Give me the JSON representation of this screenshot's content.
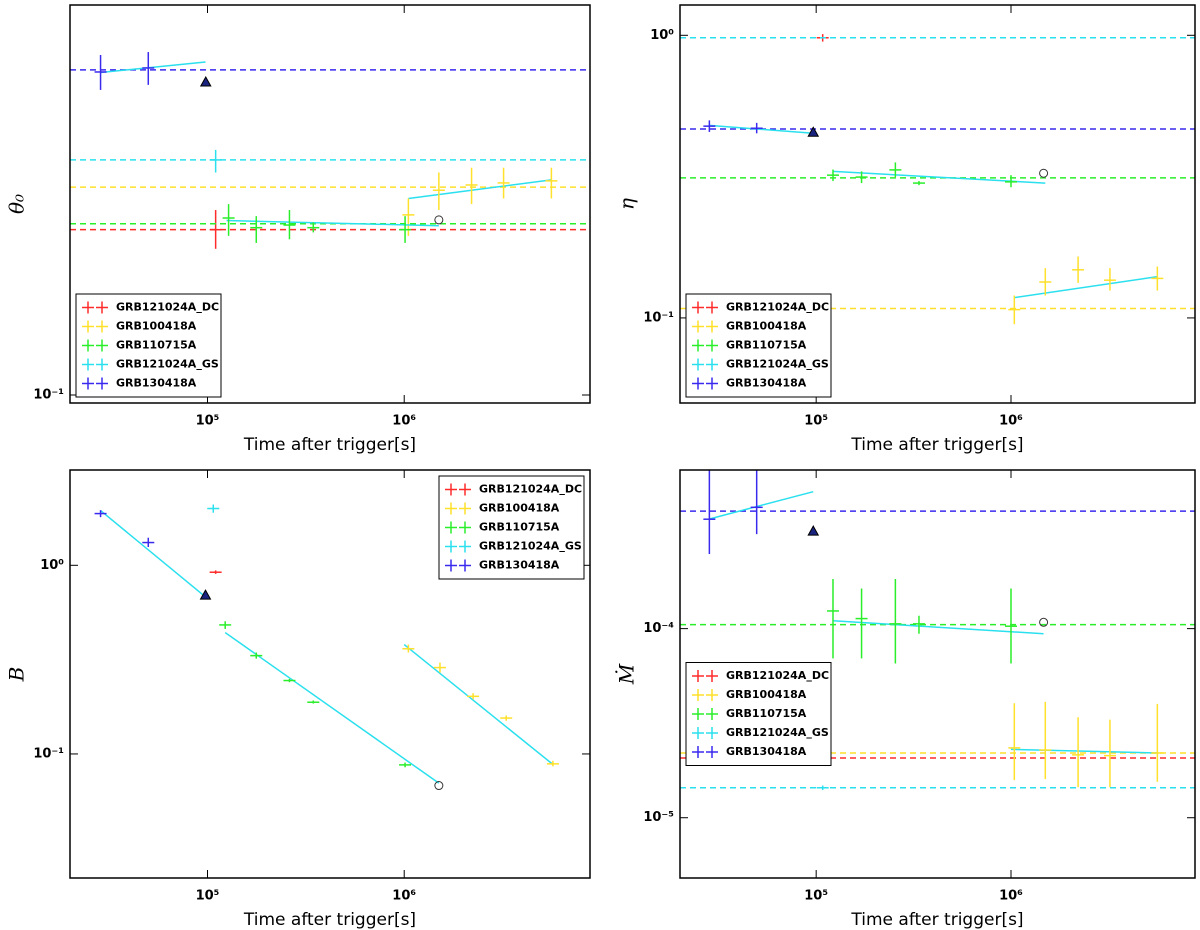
{
  "chart_data": [
    {
      "type": "scatter",
      "xlabel": "Time after trigger[s]",
      "ylabel": "θ₀",
      "log_x": true,
      "log_y": true,
      "xlim": [
        20000,
        8800000
      ],
      "ylim": [
        0.0955,
        0.944
      ],
      "xticks": [
        {
          "value": 100000,
          "label": "10⁵"
        },
        {
          "value": 1000000,
          "label": "10⁶"
        }
      ],
      "yticks": [
        {
          "value": 0.1,
          "label": "10⁻¹"
        }
      ],
      "legend": "lower left",
      "fit_color": "#2ae0ee",
      "triangle": [
        98000,
        0.606
      ],
      "circle": [
        1500000,
        0.274
      ],
      "series": [
        {
          "name": "GRB121024A_DC",
          "color": "#ff2a2a",
          "x": [
            110000
          ],
          "values": [
            0.259
          ],
          "ylow": [
            0.232
          ],
          "yhigh": [
            0.29
          ],
          "level": 0.259
        },
        {
          "name": "GRB100418A",
          "color": "#ffe02a",
          "x": [
            1050000,
            1500000,
            2200000,
            3200000,
            5600000
          ],
          "values": [
            0.282,
            0.325,
            0.335,
            0.339,
            0.343
          ],
          "ylow": [
            0.25,
            0.29,
            0.3,
            0.31,
            0.31
          ],
          "yhigh": [
            0.31,
            0.36,
            0.37,
            0.37,
            0.37
          ],
          "level": 0.331,
          "fit_x": [
            1050000,
            5600000
          ],
          "fit_y": [
            0.31,
            0.345
          ]
        },
        {
          "name": "GRB110715A",
          "color": "#2aee2a",
          "x": [
            128000,
            177000,
            261000,
            345000,
            1010000
          ],
          "values": [
            0.277,
            0.262,
            0.266,
            0.262,
            0.259
          ],
          "ylow": [
            0.25,
            0.24,
            0.245,
            0.255,
            0.24
          ],
          "yhigh": [
            0.3,
            0.28,
            0.29,
            0.27,
            0.28
          ],
          "level": 0.268,
          "fit_x": [
            125000,
            1500000
          ],
          "fit_y": [
            0.273,
            0.265
          ]
        },
        {
          "name": "GRB121024A_GS",
          "color": "#2ae0ee",
          "x": [
            110000
          ],
          "values": [
            0.387
          ],
          "ylow": [
            0.36
          ],
          "yhigh": [
            0.41
          ],
          "level": 0.387
        },
        {
          "name": "GRB130418A",
          "color": "#3a2aee",
          "x": [
            28600,
            50000
          ],
          "values": [
            0.642,
            0.657
          ],
          "ylow": [
            0.579,
            0.596
          ],
          "yhigh": [
            0.708,
            0.72
          ],
          "level": 0.65,
          "fit_x": [
            28600,
            97700
          ],
          "fit_y": [
            0.64,
            0.68
          ]
        }
      ]
    },
    {
      "type": "scatter",
      "xlabel": "Time after trigger[s]",
      "ylabel": "η",
      "log_x": true,
      "log_y": true,
      "xlim": [
        20000,
        8800000
      ],
      "ylim": [
        0.05,
        1.28
      ],
      "xticks": [
        {
          "value": 100000,
          "label": "10⁵"
        },
        {
          "value": 1000000,
          "label": "10⁶"
        }
      ],
      "yticks": [
        {
          "value": 0.1,
          "label": "10⁻¹"
        },
        {
          "value": 1,
          "label": "10⁰"
        }
      ],
      "legend": "lower left",
      "fit_color": "#2ae0ee",
      "triangle": [
        96600,
        0.454
      ],
      "circle": [
        1470000,
        0.325
      ],
      "series": [
        {
          "name": "GRB121024A_DC",
          "color": "#ff2a2a",
          "x": [
            108000
          ],
          "values": [
            0.98
          ],
          "ylow": [
            0.95
          ],
          "yhigh": [
            1.01
          ],
          "level": 0.98
        },
        {
          "name": "GRB100418A",
          "color": "#ffe02a",
          "x": [
            1040000,
            1500000,
            2210000,
            3220000,
            5640000
          ],
          "values": [
            0.107,
            0.134,
            0.148,
            0.136,
            0.138
          ],
          "ylow": [
            0.095,
            0.12,
            0.133,
            0.125,
            0.125
          ],
          "yhigh": [
            0.12,
            0.15,
            0.165,
            0.15,
            0.152
          ],
          "level": 0.108,
          "fit_x": [
            1040000,
            5640000
          ],
          "fit_y": [
            0.118,
            0.14
          ]
        },
        {
          "name": "GRB110715A",
          "color": "#2aee2a",
          "x": [
            122000,
            171000,
            255000,
            337000,
            1000000
          ],
          "values": [
            0.32,
            0.315,
            0.334,
            0.3,
            0.303
          ],
          "ylow": [
            0.305,
            0.3,
            0.315,
            0.295,
            0.29
          ],
          "yhigh": [
            0.335,
            0.33,
            0.355,
            0.305,
            0.32
          ],
          "level": 0.313,
          "fit_x": [
            122000,
            1500000
          ],
          "fit_y": [
            0.33,
            0.3
          ]
        },
        {
          "name": "GRB121024A_GS",
          "color": "#2ae0ee",
          "x": [],
          "values": [],
          "ylow": [],
          "yhigh": [],
          "level": 0.98
        },
        {
          "name": "GRB130418A",
          "color": "#3a2aee",
          "x": [
            28300,
            49500
          ],
          "values": [
            0.477,
            0.469
          ],
          "ylow": [
            0.455,
            0.45
          ],
          "yhigh": [
            0.5,
            0.49
          ],
          "level": 0.466,
          "fit_x": [
            28300,
            96600
          ],
          "fit_y": [
            0.48,
            0.45
          ]
        }
      ]
    },
    {
      "type": "scatter",
      "xlabel": "Time after trigger[s]",
      "ylabel": "B",
      "log_x": true,
      "log_y": true,
      "xlim": [
        20000,
        8800000
      ],
      "ylim": [
        0.022,
        3.2
      ],
      "xticks": [
        {
          "value": 100000,
          "label": "10⁵"
        },
        {
          "value": 1000000,
          "label": "10⁶"
        }
      ],
      "yticks": [
        {
          "value": 0.1,
          "label": "10⁻¹"
        },
        {
          "value": 1,
          "label": "10⁰"
        }
      ],
      "legend": "upper right",
      "fit_color": "#2ae0ee",
      "triangle": [
        97700,
        0.695
      ],
      "circle": [
        1500000,
        0.068
      ],
      "series": [
        {
          "name": "GRB121024A_DC",
          "color": "#ff2a2a",
          "x": [
            110000
          ],
          "values": [
            0.919
          ],
          "ylow": [
            0.9
          ],
          "yhigh": [
            0.94
          ]
        },
        {
          "name": "GRB100418A",
          "color": "#ffe02a",
          "x": [
            1050000,
            1520000,
            2240000,
            3300000,
            5700000
          ],
          "values": [
            0.361,
            0.287,
            0.202,
            0.155,
            0.0886
          ],
          "ylow": [
            0.345,
            0.27,
            0.195,
            0.15,
            0.086
          ],
          "yhigh": [
            0.38,
            0.305,
            0.21,
            0.16,
            0.092
          ],
          "fit_x": [
            1000000,
            5700000
          ],
          "fit_y": [
            0.38,
            0.088
          ]
        },
        {
          "name": "GRB110715A",
          "color": "#2aee2a",
          "x": [
            123000,
            177000,
            261000,
            345000,
            1010000
          ],
          "values": [
            0.483,
            0.332,
            0.245,
            0.188,
            0.0875
          ],
          "ylow": [
            0.46,
            0.32,
            0.24,
            0.185,
            0.085
          ],
          "yhigh": [
            0.505,
            0.345,
            0.25,
            0.192,
            0.09
          ],
          "fit_x": [
            123000,
            1500000
          ],
          "fit_y": [
            0.44,
            0.07
          ]
        },
        {
          "name": "GRB121024A_GS",
          "color": "#2ae0ee",
          "x": [
            107000
          ],
          "values": [
            2.0
          ],
          "ylow": [
            1.9
          ],
          "yhigh": [
            2.1
          ]
        },
        {
          "name": "GRB130418A",
          "color": "#3a2aee",
          "x": [
            28600,
            50000
          ],
          "values": [
            1.88,
            1.32
          ],
          "ylow": [
            1.8,
            1.25
          ],
          "yhigh": [
            1.96,
            1.4
          ],
          "fit_x": [
            28600,
            97700
          ],
          "fit_y": [
            1.95,
            0.68
          ]
        }
      ]
    },
    {
      "type": "scatter",
      "xlabel": "Time after trigger[s]",
      "ylabel": "Ṁ",
      "log_x": true,
      "log_y": true,
      "xlim": [
        20000,
        8800000
      ],
      "ylim": [
        4.8e-06,
        0.00069
      ],
      "xticks": [
        {
          "value": 100000,
          "label": "10⁵"
        },
        {
          "value": 1000000,
          "label": "10⁶"
        }
      ],
      "yticks": [
        {
          "value": 1e-05,
          "label": "10⁻⁵"
        },
        {
          "value": 0.0001,
          "label": "10⁻⁴"
        }
      ],
      "legend": "center left",
      "fit_color": "#2ae0ee",
      "triangle": [
        96600,
        0.000328
      ],
      "circle": [
        1470000,
        0.000108
      ],
      "series": [
        {
          "name": "GRB121024A_DC",
          "color": "#ff2a2a",
          "x": [
            108000
          ],
          "values": [
            2.07e-05
          ],
          "ylow": [
            2e-05
          ],
          "yhigh": [
            2.14e-05
          ],
          "level": 2.07e-05
        },
        {
          "name": "GRB100418A",
          "color": "#ffe02a",
          "x": [
            1040000,
            1500000,
            2210000,
            3220000,
            5640000
          ],
          "values": [
            2.34e-05,
            2.28e-05,
            2.15e-05,
            2.13e-05,
            2.2e-05
          ],
          "ylow": [
            1.58e-05,
            1.6e-05,
            1.45e-05,
            1.45e-05,
            1.55e-05
          ],
          "yhigh": [
            4.03e-05,
            4.1e-05,
            3.4e-05,
            3.3e-05,
            4e-05
          ],
          "level": 2.2e-05,
          "fit_x": [
            1000000,
            5700000
          ],
          "fit_y": [
            2.3e-05,
            2.2e-05
          ]
        },
        {
          "name": "GRB110715A",
          "color": "#2aee2a",
          "x": [
            122000,
            171000,
            255000,
            337000,
            1000000
          ],
          "values": [
            0.000124,
            0.000113,
            0.000106,
            0.000106,
            0.000103
          ],
          "ylow": [
            6.96e-05,
            6.96e-05,
            6.54e-05,
            9.4e-05,
            6.54e-05
          ],
          "yhigh": [
            0.000183,
            0.000163,
            0.000183,
            0.000117,
            0.000163
          ],
          "level": 0.000105,
          "fit_x": [
            122000,
            1470000
          ],
          "fit_y": [
            0.00011,
            9.4e-05
          ]
        },
        {
          "name": "GRB121024A_GS",
          "color": "#2ae0ee",
          "x": [
            108000
          ],
          "values": [
            1.44e-05
          ],
          "ylow": [
            1.4e-05
          ],
          "yhigh": [
            1.48e-05
          ],
          "level": 1.44e-05
        },
        {
          "name": "GRB130418A",
          "color": "#3a2aee",
          "x": [
            28300,
            49500
          ],
          "values": [
            0.000379,
            0.000438
          ],
          "ylow": [
            0.000248,
            0.000316
          ],
          "yhigh": [
            0.000695,
            0.000695
          ],
          "level": 0.000418,
          "fit_x": [
            28300,
            96600
          ],
          "fit_y": [
            0.00038,
            0.00053
          ]
        }
      ]
    }
  ]
}
